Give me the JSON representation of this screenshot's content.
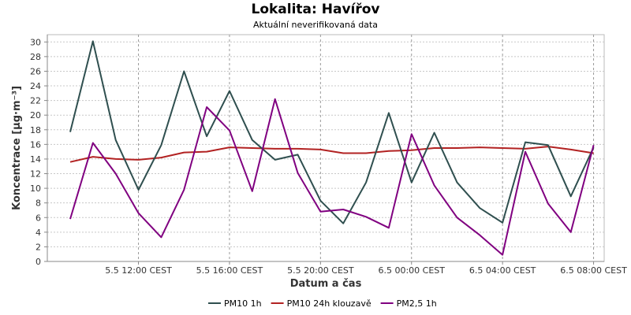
{
  "chart_data": {
    "type": "line",
    "title": "Lokalita: Havířov",
    "subtitle": "Aktuální neverifikovaná data",
    "xlabel": "Datum a čas",
    "ylabel": "Koncentrace [µg·m⁻³]",
    "x": [
      "5.5 09:00",
      "5.5 10:00",
      "5.5 11:00",
      "5.5 12:00",
      "5.5 13:00",
      "5.5 14:00",
      "5.5 15:00",
      "5.5 16:00",
      "5.5 17:00",
      "5.5 18:00",
      "5.5 19:00",
      "5.5 20:00",
      "5.5 21:00",
      "5.5 22:00",
      "5.5 23:00",
      "6.5 00:00",
      "6.5 01:00",
      "6.5 02:00",
      "6.5 03:00",
      "6.5 04:00",
      "6.5 05:00",
      "6.5 06:00",
      "6.5 07:00",
      "6.5 08:00"
    ],
    "x_tick_labels": [
      "5.5 12:00 CEST",
      "5.5 16:00 CEST",
      "5.5 20:00 CEST",
      "6.5 00:00 CEST",
      "6.5 04:00 CEST",
      "6.5 08:00 CEST"
    ],
    "x_tick_positions": [
      "5.5 12:00",
      "5.5 16:00",
      "5.5 20:00",
      "6.5 00:00",
      "6.5 04:00",
      "6.5 08:00"
    ],
    "ylim": [
      0,
      31
    ],
    "y_ticks": [
      0,
      2,
      4,
      6,
      8,
      10,
      12,
      14,
      16,
      18,
      20,
      22,
      24,
      26,
      28,
      30
    ],
    "grid": true,
    "legend_position": "bottom",
    "series": [
      {
        "name": "PM10 1h",
        "color": "#2f4f4f",
        "values": [
          17.7,
          30.1,
          16.6,
          9.8,
          15.9,
          26.0,
          17.1,
          23.3,
          16.6,
          13.9,
          14.6,
          8.3,
          5.2,
          10.8,
          20.3,
          10.8,
          17.6,
          10.8,
          7.3,
          5.3,
          16.3,
          15.9,
          8.9,
          15.6
        ]
      },
      {
        "name": "PM10 24h klouzavě",
        "color": "#b22222",
        "values": [
          13.6,
          14.3,
          14.0,
          13.9,
          14.2,
          14.9,
          15.0,
          15.6,
          15.5,
          15.4,
          15.4,
          15.3,
          14.8,
          14.8,
          15.1,
          15.2,
          15.5,
          15.5,
          15.6,
          15.5,
          15.4,
          15.7,
          15.3,
          14.8
        ]
      },
      {
        "name": "PM2,5 1h",
        "color": "#800080",
        "values": [
          5.8,
          16.2,
          12.0,
          6.6,
          3.3,
          9.8,
          21.1,
          17.9,
          9.6,
          22.2,
          12.1,
          6.8,
          7.1,
          6.1,
          4.6,
          17.4,
          10.4,
          6.0,
          3.6,
          0.9,
          15.0,
          7.9,
          4.0,
          15.9
        ]
      }
    ]
  }
}
